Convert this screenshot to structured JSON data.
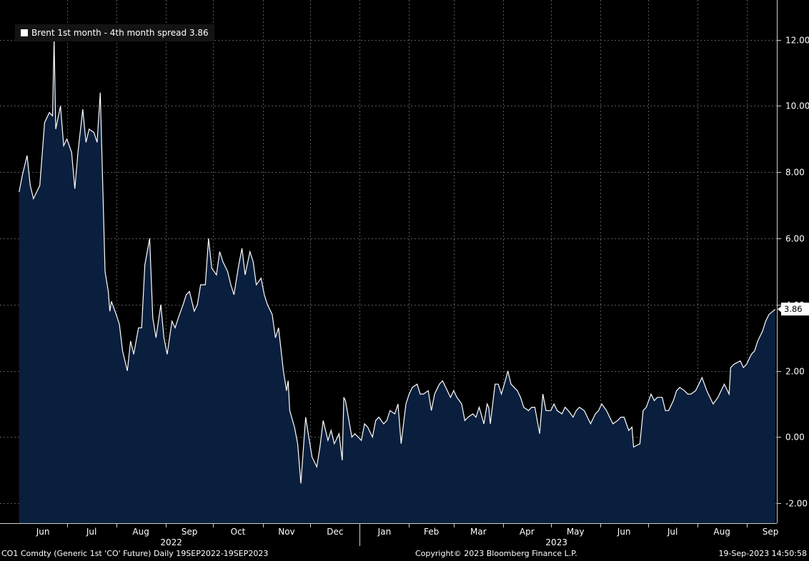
{
  "chart_data": {
    "type": "area",
    "legend": {
      "label": "Brent 1st month - 4th month spread 3.86",
      "placement": "top-left"
    },
    "last_value_label": "3.86",
    "y_ticks": [
      "12.00",
      "10.00",
      "8.00",
      "6.00",
      "4.00",
      "2.00",
      "0.00",
      "-2.00"
    ],
    "ylim": [
      -2.6,
      13.2
    ],
    "x_months": [
      {
        "label": "Jun",
        "date": "2022-06"
      },
      {
        "label": "Jul",
        "date": "2022-07"
      },
      {
        "label": "Aug",
        "date": "2022-08"
      },
      {
        "label": "Sep",
        "date": "2022-09"
      },
      {
        "label": "Oct",
        "date": "2022-10"
      },
      {
        "label": "Nov",
        "date": "2022-11"
      },
      {
        "label": "Dec",
        "date": "2022-12"
      },
      {
        "label": "Jan",
        "date": "2023-01"
      },
      {
        "label": "Feb",
        "date": "2023-02"
      },
      {
        "label": "Mar",
        "date": "2023-03"
      },
      {
        "label": "Apr",
        "date": "2023-04"
      },
      {
        "label": "May",
        "date": "2023-05"
      },
      {
        "label": "Jun",
        "date": "2023-06"
      },
      {
        "label": "Jul",
        "date": "2023-07"
      },
      {
        "label": "Aug",
        "date": "2023-08"
      },
      {
        "label": "Sep",
        "date": "2023-09"
      }
    ],
    "x_years": [
      {
        "label": "2022",
        "date": "2022-09"
      },
      {
        "label": "2023",
        "date": "2023-05"
      }
    ],
    "grid": true,
    "series": [
      {
        "name": "Brent 1st month - 4th month spread",
        "line_color": "#ffffff",
        "fill_color": "#0a1f3d",
        "points": [
          [
            "2022-06-01",
            7.4
          ],
          [
            "2022-06-03",
            7.9
          ],
          [
            "2022-06-06",
            8.5
          ],
          [
            "2022-06-08",
            7.6
          ],
          [
            "2022-06-10",
            7.2
          ],
          [
            "2022-06-14",
            7.6
          ],
          [
            "2022-06-17",
            9.5
          ],
          [
            "2022-06-20",
            9.8
          ],
          [
            "2022-06-22",
            9.7
          ],
          [
            "2022-06-23",
            12.0
          ],
          [
            "2022-06-24",
            9.3
          ],
          [
            "2022-06-27",
            10.0
          ],
          [
            "2022-06-29",
            8.8
          ],
          [
            "2022-07-01",
            9.0
          ],
          [
            "2022-07-04",
            8.6
          ],
          [
            "2022-07-06",
            7.5
          ],
          [
            "2022-07-08",
            8.6
          ],
          [
            "2022-07-11",
            9.9
          ],
          [
            "2022-07-13",
            8.9
          ],
          [
            "2022-07-15",
            9.3
          ],
          [
            "2022-07-18",
            9.2
          ],
          [
            "2022-07-20",
            8.9
          ],
          [
            "2022-07-22",
            10.4
          ],
          [
            "2022-07-25",
            5.0
          ],
          [
            "2022-07-27",
            4.4
          ],
          [
            "2022-07-28",
            3.8
          ],
          [
            "2022-07-29",
            4.1
          ],
          [
            "2022-08-01",
            3.7
          ],
          [
            "2022-08-03",
            3.4
          ],
          [
            "2022-08-05",
            2.6
          ],
          [
            "2022-08-08",
            2.0
          ],
          [
            "2022-08-10",
            2.9
          ],
          [
            "2022-08-12",
            2.5
          ],
          [
            "2022-08-15",
            3.3
          ],
          [
            "2022-08-17",
            3.3
          ],
          [
            "2022-08-19",
            5.2
          ],
          [
            "2022-08-22",
            6.0
          ],
          [
            "2022-08-24",
            3.6
          ],
          [
            "2022-08-26",
            3.0
          ],
          [
            "2022-08-29",
            4.0
          ],
          [
            "2022-08-31",
            3.0
          ],
          [
            "2022-09-02",
            2.5
          ],
          [
            "2022-09-05",
            3.5
          ],
          [
            "2022-09-07",
            3.3
          ],
          [
            "2022-09-09",
            3.6
          ],
          [
            "2022-09-12",
            4.0
          ],
          [
            "2022-09-14",
            4.3
          ],
          [
            "2022-09-16",
            4.4
          ],
          [
            "2022-09-19",
            3.8
          ],
          [
            "2022-09-21",
            4.0
          ],
          [
            "2022-09-23",
            4.6
          ],
          [
            "2022-09-26",
            4.6
          ],
          [
            "2022-09-28",
            6.0
          ],
          [
            "2022-09-30",
            5.1
          ],
          [
            "2022-10-03",
            4.9
          ],
          [
            "2022-10-05",
            5.6
          ],
          [
            "2022-10-07",
            5.3
          ],
          [
            "2022-10-10",
            5.0
          ],
          [
            "2022-10-12",
            4.6
          ],
          [
            "2022-10-14",
            4.3
          ],
          [
            "2022-10-17",
            5.2
          ],
          [
            "2022-10-19",
            5.7
          ],
          [
            "2022-10-21",
            4.9
          ],
          [
            "2022-10-24",
            5.6
          ],
          [
            "2022-10-26",
            5.3
          ],
          [
            "2022-10-28",
            4.6
          ],
          [
            "2022-10-31",
            4.8
          ],
          [
            "2022-11-02",
            4.3
          ],
          [
            "2022-11-04",
            4.0
          ],
          [
            "2022-11-07",
            3.7
          ],
          [
            "2022-11-09",
            3.0
          ],
          [
            "2022-11-11",
            3.3
          ],
          [
            "2022-11-14",
            2.0
          ],
          [
            "2022-11-16",
            1.4
          ],
          [
            "2022-11-17",
            1.7
          ],
          [
            "2022-11-18",
            0.8
          ],
          [
            "2022-11-21",
            0.3
          ],
          [
            "2022-11-23",
            -0.2
          ],
          [
            "2022-11-25",
            -1.4
          ],
          [
            "2022-11-28",
            0.6
          ],
          [
            "2022-11-30",
            0.0
          ],
          [
            "2022-12-02",
            -0.6
          ],
          [
            "2022-12-05",
            -0.9
          ],
          [
            "2022-12-07",
            -0.3
          ],
          [
            "2022-12-09",
            0.5
          ],
          [
            "2022-12-12",
            -0.1
          ],
          [
            "2022-12-14",
            0.2
          ],
          [
            "2022-12-16",
            -0.2
          ],
          [
            "2022-12-19",
            0.1
          ],
          [
            "2022-12-21",
            -0.7
          ],
          [
            "2022-12-22",
            1.2
          ],
          [
            "2022-12-23",
            1.1
          ],
          [
            "2022-12-27",
            0.0
          ],
          [
            "2022-12-29",
            0.1
          ],
          [
            "2023-01-02",
            -0.1
          ],
          [
            "2023-01-04",
            0.4
          ],
          [
            "2023-01-06",
            0.3
          ],
          [
            "2023-01-09",
            0.0
          ],
          [
            "2023-01-11",
            0.5
          ],
          [
            "2023-01-13",
            0.6
          ],
          [
            "2023-01-16",
            0.4
          ],
          [
            "2023-01-18",
            0.5
          ],
          [
            "2023-01-20",
            0.8
          ],
          [
            "2023-01-23",
            0.7
          ],
          [
            "2023-01-25",
            1.0
          ],
          [
            "2023-01-27",
            -0.2
          ],
          [
            "2023-01-30",
            1.0
          ],
          [
            "2023-02-01",
            1.3
          ],
          [
            "2023-02-03",
            1.5
          ],
          [
            "2023-02-06",
            1.6
          ],
          [
            "2023-02-08",
            1.3
          ],
          [
            "2023-02-10",
            1.3
          ],
          [
            "2023-02-13",
            1.4
          ],
          [
            "2023-02-15",
            0.8
          ],
          [
            "2023-02-17",
            1.3
          ],
          [
            "2023-02-20",
            1.6
          ],
          [
            "2023-02-22",
            1.7
          ],
          [
            "2023-02-24",
            1.5
          ],
          [
            "2023-02-27",
            1.2
          ],
          [
            "2023-03-01",
            1.4
          ],
          [
            "2023-03-03",
            1.2
          ],
          [
            "2023-03-06",
            1.0
          ],
          [
            "2023-03-08",
            0.5
          ],
          [
            "2023-03-10",
            0.6
          ],
          [
            "2023-03-13",
            0.7
          ],
          [
            "2023-03-15",
            0.6
          ],
          [
            "2023-03-17",
            0.9
          ],
          [
            "2023-03-20",
            0.4
          ],
          [
            "2023-03-22",
            1.0
          ],
          [
            "2023-03-23",
            0.9
          ],
          [
            "2023-03-24",
            0.4
          ],
          [
            "2023-03-27",
            1.6
          ],
          [
            "2023-03-29",
            1.6
          ],
          [
            "2023-03-31",
            1.3
          ],
          [
            "2023-04-03",
            1.8
          ],
          [
            "2023-04-04",
            2.0
          ],
          [
            "2023-04-06",
            1.6
          ],
          [
            "2023-04-10",
            1.4
          ],
          [
            "2023-04-12",
            1.2
          ],
          [
            "2023-04-14",
            0.9
          ],
          [
            "2023-04-17",
            0.8
          ],
          [
            "2023-04-19",
            0.9
          ],
          [
            "2023-04-21",
            0.9
          ],
          [
            "2023-04-24",
            0.1
          ],
          [
            "2023-04-26",
            1.3
          ],
          [
            "2023-04-28",
            0.8
          ],
          [
            "2023-05-01",
            0.8
          ],
          [
            "2023-05-03",
            1.0
          ],
          [
            "2023-05-05",
            0.8
          ],
          [
            "2023-05-08",
            0.7
          ],
          [
            "2023-05-10",
            0.9
          ],
          [
            "2023-05-12",
            0.8
          ],
          [
            "2023-05-15",
            0.6
          ],
          [
            "2023-05-17",
            0.8
          ],
          [
            "2023-05-19",
            0.9
          ],
          [
            "2023-05-22",
            0.8
          ],
          [
            "2023-05-24",
            0.6
          ],
          [
            "2023-05-26",
            0.4
          ],
          [
            "2023-05-29",
            0.7
          ],
          [
            "2023-05-31",
            0.8
          ],
          [
            "2023-06-02",
            1.0
          ],
          [
            "2023-06-05",
            0.8
          ],
          [
            "2023-06-07",
            0.6
          ],
          [
            "2023-06-09",
            0.4
          ],
          [
            "2023-06-12",
            0.5
          ],
          [
            "2023-06-14",
            0.6
          ],
          [
            "2023-06-16",
            0.6
          ],
          [
            "2023-06-19",
            0.2
          ],
          [
            "2023-06-21",
            0.3
          ],
          [
            "2023-06-22",
            -0.3
          ],
          [
            "2023-06-26",
            -0.2
          ],
          [
            "2023-06-28",
            0.8
          ],
          [
            "2023-06-30",
            0.9
          ],
          [
            "2023-07-03",
            1.3
          ],
          [
            "2023-07-05",
            1.1
          ],
          [
            "2023-07-07",
            1.2
          ],
          [
            "2023-07-10",
            1.2
          ],
          [
            "2023-07-12",
            0.8
          ],
          [
            "2023-07-14",
            0.8
          ],
          [
            "2023-07-17",
            1.1
          ],
          [
            "2023-07-19",
            1.4
          ],
          [
            "2023-07-21",
            1.5
          ],
          [
            "2023-07-24",
            1.4
          ],
          [
            "2023-07-26",
            1.3
          ],
          [
            "2023-07-28",
            1.3
          ],
          [
            "2023-07-31",
            1.4
          ],
          [
            "2023-08-02",
            1.6
          ],
          [
            "2023-08-04",
            1.8
          ],
          [
            "2023-08-07",
            1.4
          ],
          [
            "2023-08-09",
            1.2
          ],
          [
            "2023-08-11",
            1.0
          ],
          [
            "2023-08-14",
            1.2
          ],
          [
            "2023-08-16",
            1.4
          ],
          [
            "2023-08-18",
            1.6
          ],
          [
            "2023-08-21",
            1.3
          ],
          [
            "2023-08-22",
            2.1
          ],
          [
            "2023-08-24",
            2.2
          ],
          [
            "2023-08-28",
            2.3
          ],
          [
            "2023-08-30",
            2.1
          ],
          [
            "2023-09-01",
            2.2
          ],
          [
            "2023-09-04",
            2.5
          ],
          [
            "2023-09-06",
            2.6
          ],
          [
            "2023-09-08",
            2.9
          ],
          [
            "2023-09-11",
            3.2
          ],
          [
            "2023-09-13",
            3.5
          ],
          [
            "2023-09-15",
            3.7
          ],
          [
            "2023-09-19",
            3.86
          ]
        ]
      }
    ]
  },
  "footer": {
    "left": "CO1 Comdty (Generic 1st 'CO' Future)  Daily 19SEP2022-19SEP2023",
    "middle": "Copyright© 2023 Bloomberg Finance L.P.",
    "right": "19-Sep-2023 14:50:58"
  }
}
